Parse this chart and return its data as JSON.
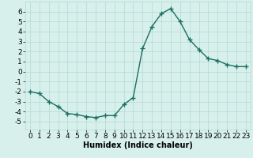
{
  "x": [
    0,
    1,
    2,
    3,
    4,
    5,
    6,
    7,
    8,
    9,
    10,
    11,
    12,
    13,
    14,
    15,
    16,
    17,
    18,
    19,
    20,
    21,
    22,
    23
  ],
  "y": [
    -2.0,
    -2.2,
    -3.0,
    -3.5,
    -4.2,
    -4.3,
    -4.5,
    -4.6,
    -4.4,
    -4.4,
    -3.3,
    -2.6,
    2.3,
    4.5,
    5.8,
    6.3,
    5.0,
    3.2,
    2.2,
    1.3,
    1.1,
    0.7,
    0.5,
    0.5
  ],
  "line_color": "#1a6e62",
  "marker": "+",
  "marker_size": 4,
  "marker_linewidth": 1.0,
  "line_width": 1.0,
  "bg_color": "#d8f0ec",
  "grid_color": "#b2d8d2",
  "xlabel": "Humidex (Indice chaleur)",
  "xlabel_fontsize": 7,
  "xlim": [
    -0.5,
    23.5
  ],
  "ylim": [
    -5.8,
    7.0
  ],
  "yticks": [
    -5,
    -4,
    -3,
    -2,
    -1,
    0,
    1,
    2,
    3,
    4,
    5,
    6
  ],
  "xticks": [
    0,
    1,
    2,
    3,
    4,
    5,
    6,
    7,
    8,
    9,
    10,
    11,
    12,
    13,
    14,
    15,
    16,
    17,
    18,
    19,
    20,
    21,
    22,
    23
  ],
  "tick_fontsize": 6.5
}
